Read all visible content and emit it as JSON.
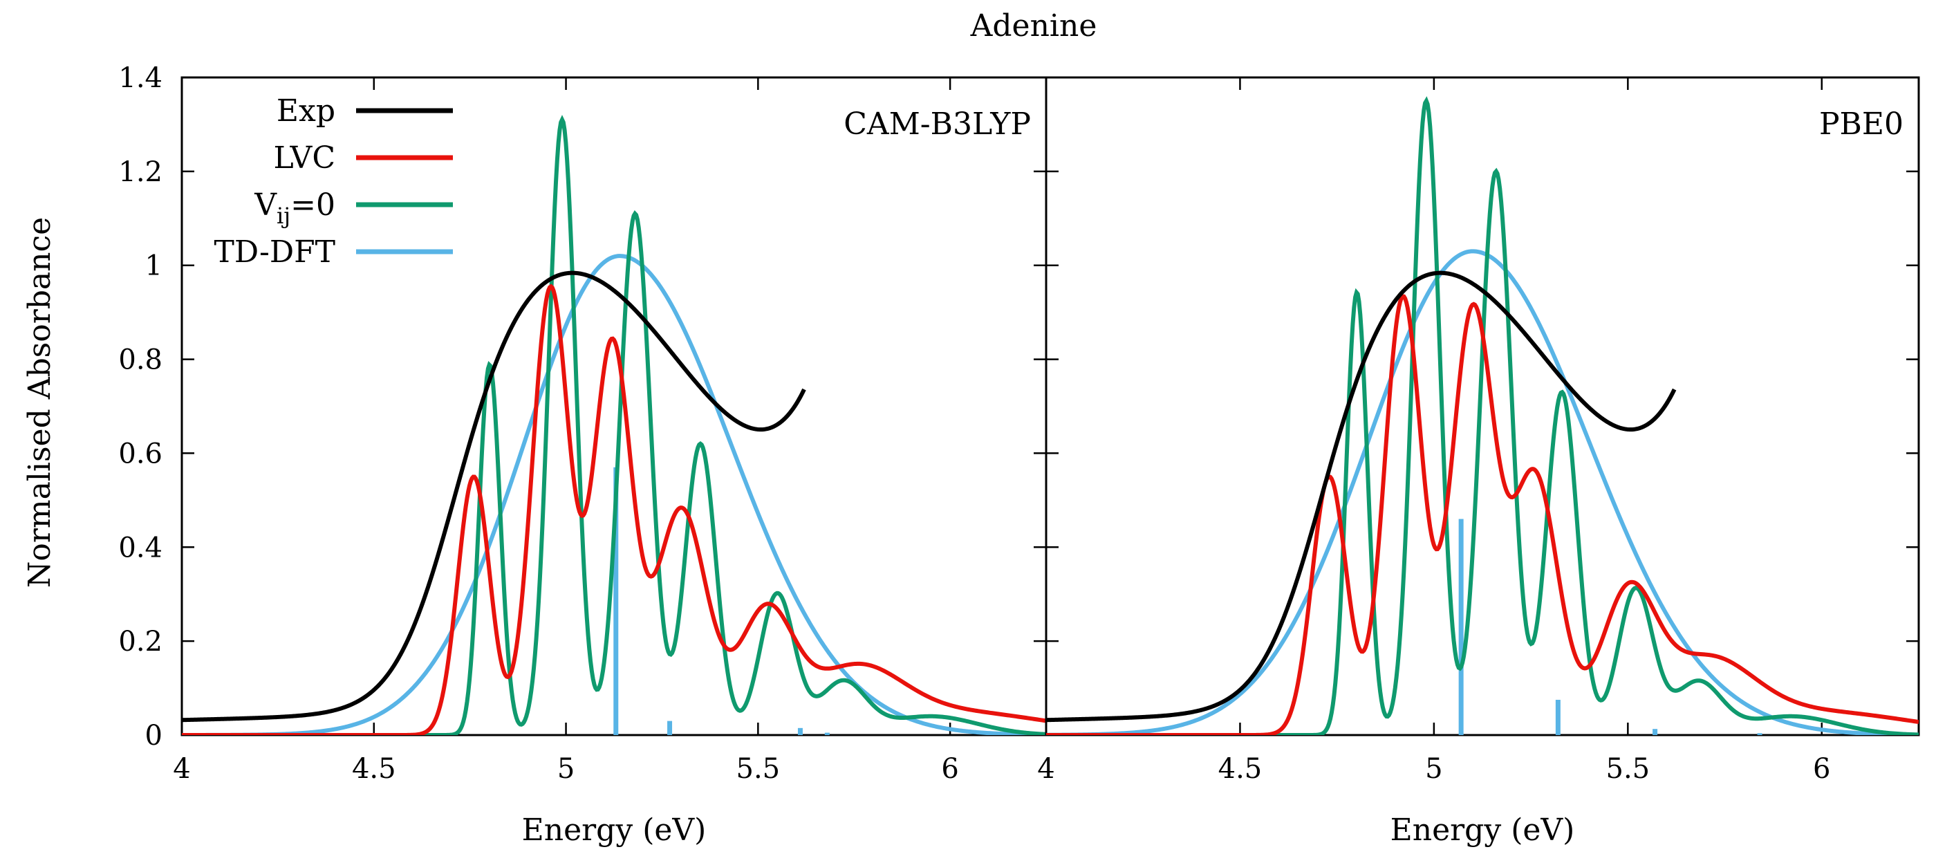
{
  "chart_data": {
    "title": "Adenine",
    "ylabel": "Normalised Absorbance",
    "xlim": [
      4.0,
      6.25
    ],
    "ylim": [
      0,
      1.4
    ],
    "grid": false,
    "legend_position": "top-left",
    "yticks": [
      {
        "value": 0,
        "label": "0"
      },
      {
        "value": 0.2,
        "label": "0.2"
      },
      {
        "value": 0.4,
        "label": "0.4"
      },
      {
        "value": 0.6,
        "label": "0.6"
      },
      {
        "value": 0.8,
        "label": "0.8"
      },
      {
        "value": 1.0,
        "label": "1"
      },
      {
        "value": 1.2,
        "label": "1.2"
      },
      {
        "value": 1.4,
        "label": "1.4"
      }
    ],
    "xticks": [
      {
        "value": 4.0,
        "label": "4"
      },
      {
        "value": 4.5,
        "label": "4.5"
      },
      {
        "value": 5.0,
        "label": "5"
      },
      {
        "value": 5.5,
        "label": "5.5"
      },
      {
        "value": 6.0,
        "label": "6"
      }
    ],
    "series_meta": [
      {
        "key": "exp",
        "name": "Exp",
        "color": "#000000"
      },
      {
        "key": "lvc",
        "name": "LVC",
        "color": "#e8120c"
      },
      {
        "key": "vij",
        "name": "V",
        "sub": "ij",
        "suffix": "=0",
        "color": "#0f9a6e"
      },
      {
        "key": "tddft",
        "name": "TD-DFT",
        "color": "#58b4e6"
      }
    ],
    "panels": [
      {
        "type": "line",
        "label": "CAM-B3LYP",
        "xlabel": "Energy (eV)",
        "series": {
          "exp": {
            "peak": 1.0
          },
          "lvc": {
            "peaks": [
              [
                4.76,
                0.55,
                0.042
              ],
              [
                4.96,
                0.95,
                0.048
              ],
              [
                5.12,
                0.83,
                0.05
              ],
              [
                5.3,
                0.48,
                0.065
              ],
              [
                5.52,
                0.25,
                0.07
              ],
              [
                5.75,
                0.12,
                0.12
              ],
              [
                6.0,
                0.05,
                0.25
              ]
            ]
          },
          "vij": {
            "peaks": [
              [
                4.8,
                0.82,
                0.028
              ],
              [
                4.99,
                1.31,
                0.035
              ],
              [
                5.18,
                1.11,
                0.04
              ],
              [
                5.35,
                0.62,
                0.04
              ],
              [
                5.55,
                0.3,
                0.045
              ],
              [
                5.72,
                0.11,
                0.06
              ],
              [
                5.95,
                0.04,
                0.12
              ]
            ],
            "onset": 4.72,
            "onset_width": 0.025
          },
          "tddft": {
            "center": 5.14,
            "height": 1.02,
            "sigma_left": 0.25,
            "sigma_right": 0.29
          },
          "sticks": [
            [
              5.13,
              0.57
            ],
            [
              5.27,
              0.03
            ],
            [
              5.61,
              0.015
            ],
            [
              5.68,
              0.005
            ]
          ]
        }
      },
      {
        "type": "line",
        "label": "PBE0",
        "xlabel": "Energy (eV)",
        "series": {
          "exp": {
            "peak": 1.0
          },
          "lvc": {
            "peaks": [
              [
                4.73,
                0.55,
                0.045
              ],
              [
                4.92,
                0.93,
                0.048
              ],
              [
                5.1,
                0.9,
                0.055
              ],
              [
                5.26,
                0.55,
                0.06
              ],
              [
                5.5,
                0.28,
                0.07
              ],
              [
                5.7,
                0.14,
                0.12
              ],
              [
                5.98,
                0.05,
                0.25
              ]
            ]
          },
          "vij": {
            "peaks": [
              [
                4.8,
                0.98,
                0.028
              ],
              [
                4.98,
                1.35,
                0.035
              ],
              [
                5.16,
                1.2,
                0.04
              ],
              [
                5.33,
                0.73,
                0.04
              ],
              [
                5.52,
                0.31,
                0.045
              ],
              [
                5.68,
                0.11,
                0.06
              ],
              [
                5.92,
                0.04,
                0.12
              ]
            ],
            "onset": 4.72,
            "onset_width": 0.025
          },
          "tddft": {
            "center": 5.1,
            "height": 1.03,
            "sigma_left": 0.27,
            "sigma_right": 0.3
          },
          "sticks": [
            [
              5.07,
              0.46
            ],
            [
              5.32,
              0.075
            ],
            [
              5.57,
              0.013
            ],
            [
              5.84,
              0.004
            ]
          ]
        }
      }
    ]
  }
}
